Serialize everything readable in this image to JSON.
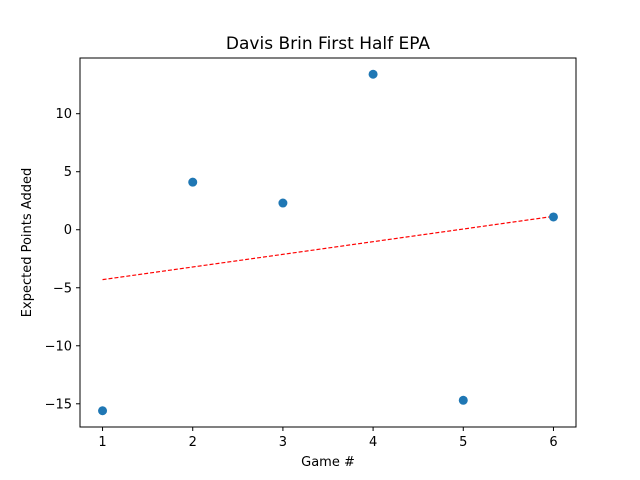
{
  "chart_data": {
    "type": "scatter",
    "title": "Davis Brin First Half EPA",
    "xlabel": "Game #",
    "ylabel": "Expected Points Added",
    "xlim": [
      0.75,
      6.25
    ],
    "ylim": [
      -17.0,
      14.8
    ],
    "xticks": [
      1,
      2,
      3,
      4,
      5,
      6
    ],
    "yticks": [
      -15,
      -10,
      -5,
      0,
      5,
      10
    ],
    "grid": false,
    "legend": "none",
    "series": [
      {
        "type": "scatter",
        "color": "#1f77b4",
        "points": [
          {
            "x": 1,
            "y": -15.6
          },
          {
            "x": 2,
            "y": 4.1
          },
          {
            "x": 3,
            "y": 2.3
          },
          {
            "x": 4,
            "y": 13.4
          },
          {
            "x": 5,
            "y": -14.7
          },
          {
            "x": 6,
            "y": 1.1
          }
        ]
      },
      {
        "type": "line",
        "style": "dashed",
        "color": "#ff0000",
        "points": [
          {
            "x": 1,
            "y": -4.3
          },
          {
            "x": 6,
            "y": 1.15
          }
        ]
      }
    ]
  }
}
